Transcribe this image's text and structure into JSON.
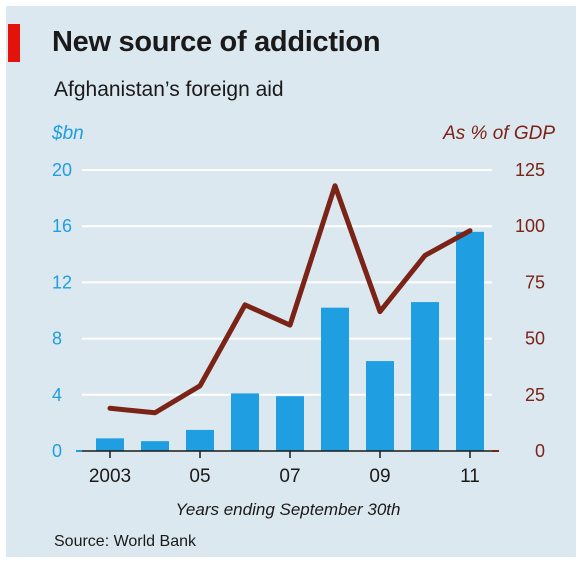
{
  "header": {
    "title": "New source of addiction",
    "subtitle": "Afghanistan’s foreign aid"
  },
  "footer": {
    "source": "Source: World Bank"
  },
  "colors": {
    "bar": "#1f9ee1",
    "line": "#7a2316",
    "accent_red": "#e3120b",
    "left_axis_text": "#1f9ee1",
    "right_axis_text": "#7a2316"
  },
  "chart_data": {
    "type": "bar",
    "title": "New source of addiction",
    "subtitle": "Afghanistan’s foreign aid",
    "xlabel": "Years ending September 30th",
    "ylabel_left": "$bn",
    "ylabel_right": "As % of GDP",
    "x": [
      2003,
      2004,
      2005,
      2006,
      2007,
      2008,
      2009,
      2010,
      2011
    ],
    "x_tick_labels": [
      {
        "x": 2003,
        "label": "2003"
      },
      {
        "x": 2005,
        "label": "05"
      },
      {
        "x": 2007,
        "label": "07"
      },
      {
        "x": 2009,
        "label": "09"
      },
      {
        "x": 2011,
        "label": "11"
      }
    ],
    "ylim_left": [
      0,
      20
    ],
    "yticks_left": [
      0,
      4,
      8,
      12,
      16,
      20
    ],
    "ylim_right": [
      0,
      125
    ],
    "yticks_right": [
      0,
      25,
      50,
      75,
      100,
      125
    ],
    "grid": true,
    "series": [
      {
        "type": "bar",
        "axis": "left",
        "values": [
          0.9,
          0.7,
          1.5,
          4.1,
          3.9,
          10.2,
          6.4,
          10.6,
          15.6
        ]
      },
      {
        "type": "line",
        "axis": "right",
        "values": [
          19,
          17,
          29,
          65,
          56,
          118,
          62,
          87,
          98
        ]
      }
    ]
  }
}
